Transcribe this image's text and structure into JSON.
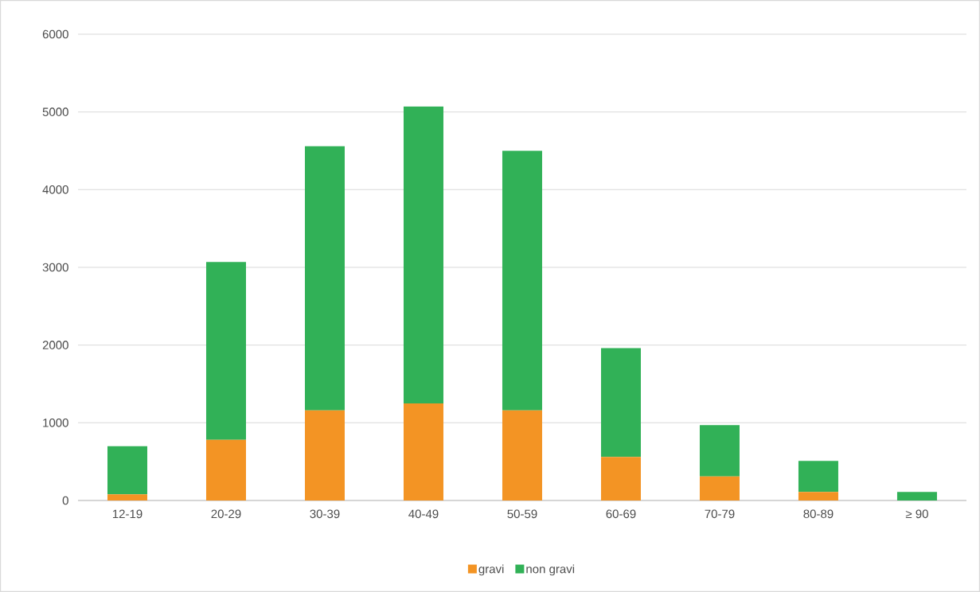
{
  "chart_data": {
    "type": "bar",
    "stacked": true,
    "categories": [
      "12-19",
      "20-29",
      "30-39",
      "40-49",
      "50-59",
      "60-69",
      "70-79",
      "80-89",
      "≥ 90"
    ],
    "series": [
      {
        "name": "gravi",
        "color": "#f39424",
        "values": [
          80,
          780,
          1160,
          1250,
          1160,
          560,
          310,
          110,
          null
        ]
      },
      {
        "name": "non gravi",
        "color": "#31b157",
        "values": [
          620,
          2290,
          3400,
          3820,
          3340,
          1400,
          660,
          400,
          110
        ]
      }
    ],
    "ylim": [
      0,
      6000
    ],
    "yticks": [
      0,
      1000,
      2000,
      3000,
      4000,
      5000,
      6000
    ],
    "grid": "y",
    "legend": "bottom"
  }
}
